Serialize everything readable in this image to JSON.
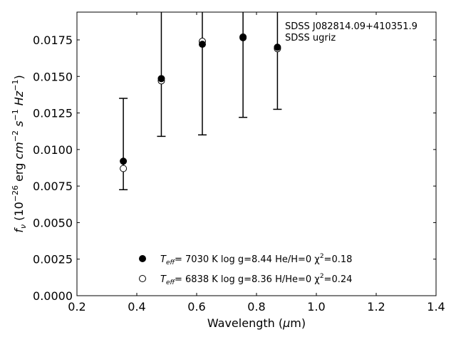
{
  "chart_data": {
    "type": "scatter",
    "title": "",
    "annotation": [
      "SDSS J082814.09+410351.9",
      "SDSS ugriz"
    ],
    "xlabel": "Wavelength (μm)",
    "ylabel": "f_ν (10^-26 erg cm^-2 s^-1 Hz^-1)",
    "xlim": [
      0.2,
      1.4
    ],
    "ylim": [
      0.0,
      0.0194
    ],
    "xticks": [
      0.2,
      0.4,
      0.6,
      0.8,
      1.0,
      1.2,
      1.4
    ],
    "xtick_labels": [
      "0.2",
      "0.4",
      "0.6",
      "0.8",
      "1.0",
      "1.2",
      "1.4"
    ],
    "yticks": [
      0.0,
      0.0025,
      0.005,
      0.0075,
      0.01,
      0.0125,
      0.015,
      0.0175
    ],
    "ytick_labels": [
      "0.0000",
      "0.0025",
      "0.0050",
      "0.0075",
      "0.0100",
      "0.0125",
      "0.0150",
      "0.0175"
    ],
    "grid": false,
    "legend_position": "bottom-center",
    "errorbars": [
      {
        "x": 0.355,
        "y": 0.0092,
        "ylow": 0.00725,
        "yhigh": 0.0135
      },
      {
        "x": 0.482,
        "y": 0.01485,
        "ylow": 0.0109,
        "yhigh": 0.0194
      },
      {
        "x": 0.619,
        "y": 0.0172,
        "ylow": 0.011,
        "yhigh": 0.0194
      },
      {
        "x": 0.755,
        "y": 0.01765,
        "ylow": 0.0122,
        "yhigh": 0.0194
      },
      {
        "x": 0.87,
        "y": 0.017,
        "ylow": 0.01275,
        "yhigh": 0.0194
      }
    ],
    "series": [
      {
        "legend": [
          "T",
          "eff",
          "=  7030 K  log g=8.44  He/H=0  χ",
          "2",
          "=0.18"
        ],
        "marker": "filled-circle",
        "color": "#000000",
        "x": [
          0.355,
          0.482,
          0.619,
          0.755,
          0.87
        ],
        "y": [
          0.0092,
          0.01485,
          0.0172,
          0.01765,
          0.017
        ]
      },
      {
        "legend": [
          "T",
          "eff",
          "=  6838 K  log g=8.36  H/He=0  χ",
          "2",
          "=0.24"
        ],
        "marker": "open-circle",
        "color": "#000000",
        "x": [
          0.355,
          0.482,
          0.619,
          0.755,
          0.87
        ],
        "y": [
          0.0087,
          0.0147,
          0.0174,
          0.0177,
          0.0169
        ]
      }
    ]
  }
}
